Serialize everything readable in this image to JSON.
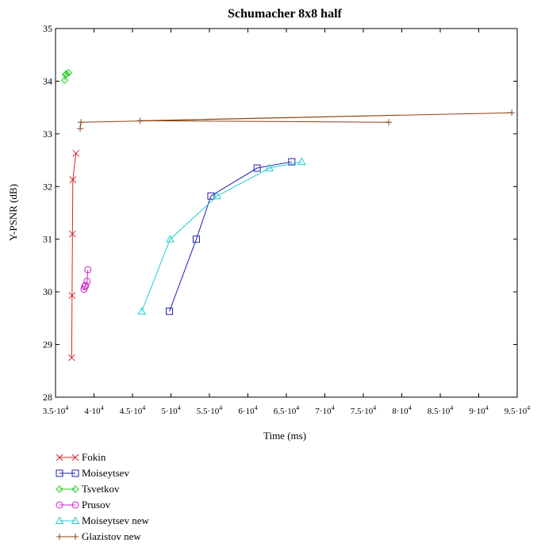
{
  "chart_data": {
    "type": "line",
    "title": "Schumacher 8x8 half",
    "xlabel": "Time (ms)",
    "ylabel": "Y-PSNR (dB)",
    "xlim": [
      35000,
      95000
    ],
    "ylim": [
      28,
      35
    ],
    "x_ticks": [
      35000,
      40000,
      45000,
      50000,
      55000,
      60000,
      65000,
      70000,
      75000,
      80000,
      85000,
      90000,
      95000
    ],
    "x_tick_labels": [
      {
        "mant": "3.5·10",
        "exp": "4"
      },
      {
        "mant": "4·10",
        "exp": "4"
      },
      {
        "mant": "4.5·10",
        "exp": "4"
      },
      {
        "mant": "5·10",
        "exp": "4"
      },
      {
        "mant": "5.5·10",
        "exp": "4"
      },
      {
        "mant": "6·10",
        "exp": "4"
      },
      {
        "mant": "6.5·10",
        "exp": "4"
      },
      {
        "mant": "7·10",
        "exp": "4"
      },
      {
        "mant": "7.5·10",
        "exp": "4"
      },
      {
        "mant": "8·10",
        "exp": "4"
      },
      {
        "mant": "8.5·10",
        "exp": "4"
      },
      {
        "mant": "9·10",
        "exp": "4"
      },
      {
        "mant": "9.5·10",
        "exp": "4"
      }
    ],
    "y_ticks": [
      28,
      29,
      30,
      31,
      32,
      33,
      34,
      35
    ],
    "y_tick_labels": [
      "28",
      "29",
      "30",
      "31",
      "32",
      "33",
      "34",
      "35"
    ],
    "grid": false,
    "legend_position": "bottom-left",
    "series": [
      {
        "name": "Fokin",
        "color": "#d62728",
        "marker": "x",
        "x": [
          37100,
          37150,
          37200,
          37250,
          37650
        ],
        "y": [
          28.75,
          29.93,
          31.1,
          32.13,
          32.63
        ]
      },
      {
        "name": "Moiseytsev",
        "color": "#1f1fb4",
        "marker": "square",
        "x": [
          49800,
          53300,
          55200,
          61200,
          65700
        ],
        "y": [
          29.63,
          31.0,
          31.82,
          32.35,
          32.47
        ]
      },
      {
        "name": "Tsvetkov",
        "color": "#22cc22",
        "marker": "diamond",
        "x": [
          36200,
          36300,
          36400,
          36700
        ],
        "y": [
          34.02,
          34.12,
          34.14,
          34.16
        ]
      },
      {
        "name": "Prusov",
        "color": "#cc22cc",
        "marker": "circle",
        "x": [
          38700,
          38800,
          38900,
          39100,
          39200
        ],
        "y": [
          30.05,
          30.1,
          30.12,
          30.2,
          30.42
        ]
      },
      {
        "name": "Moiseytsev new",
        "color": "#22cccc",
        "marker": "triangle",
        "x": [
          46200,
          49900,
          56000,
          62800,
          67000
        ],
        "y": [
          29.63,
          31.0,
          31.82,
          32.35,
          32.47
        ]
      },
      {
        "name": "Glazistov new",
        "color": "#8b4513",
        "marker": "plus",
        "x": [
          38200,
          38300,
          94300,
          46000,
          78300
        ],
        "y": [
          33.1,
          33.22,
          33.4,
          33.25,
          33.22
        ]
      }
    ]
  }
}
